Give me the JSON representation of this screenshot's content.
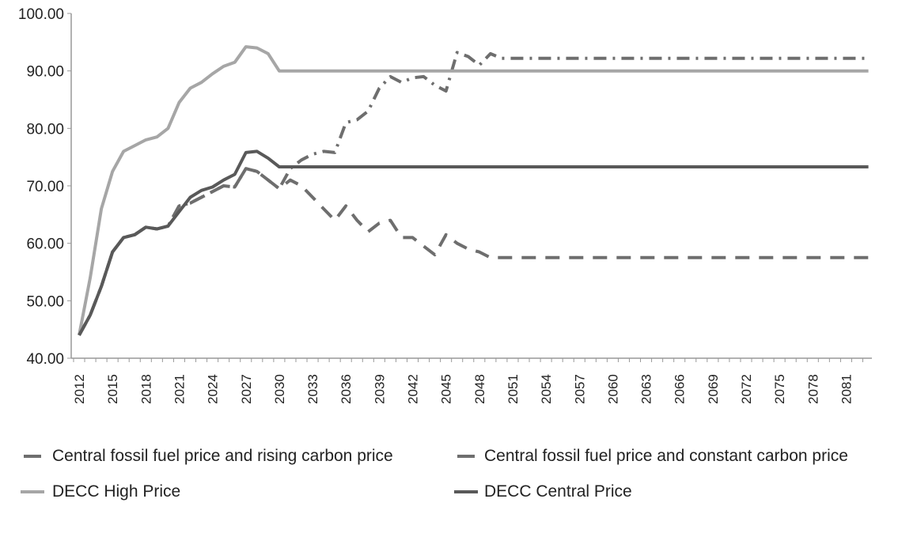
{
  "chart_data": {
    "type": "line",
    "title": "",
    "xlabel": "",
    "ylabel": "",
    "ylim": [
      40,
      100
    ],
    "yticks": [
      "40.00",
      "50.00",
      "60.00",
      "70.00",
      "80.00",
      "90.00",
      "100.00"
    ],
    "xlim": [
      2012,
      2083
    ],
    "xticks": [
      "2012",
      "2015",
      "2018",
      "2021",
      "2024",
      "2027",
      "2030",
      "2033",
      "2036",
      "2039",
      "2042",
      "2045",
      "2048",
      "2051",
      "2054",
      "2057",
      "2060",
      "2063",
      "2066",
      "2069",
      "2072",
      "2075",
      "2078",
      "2081"
    ],
    "grid": false,
    "legend_position": "bottom",
    "series": [
      {
        "name": "Central fossil fuel price and rising carbon price",
        "style": "dash-dot",
        "color": "#6e6e6e",
        "points": [
          [
            2012,
            44
          ],
          [
            2013,
            47.5
          ],
          [
            2014,
            52.5
          ],
          [
            2015,
            58.5
          ],
          [
            2016,
            61
          ],
          [
            2017,
            61.5
          ],
          [
            2018,
            62.8
          ],
          [
            2019,
            62.5
          ],
          [
            2020,
            63
          ],
          [
            2021,
            66.5
          ],
          [
            2022,
            67
          ],
          [
            2023,
            68
          ],
          [
            2024,
            69
          ],
          [
            2025,
            70
          ],
          [
            2026,
            69.8
          ],
          [
            2027,
            73
          ],
          [
            2028,
            72.5
          ],
          [
            2029,
            71
          ],
          [
            2030,
            69.5
          ],
          [
            2031,
            73
          ],
          [
            2032,
            74.5
          ],
          [
            2033,
            75.5
          ],
          [
            2034,
            76
          ],
          [
            2035,
            75.8
          ],
          [
            2036,
            81
          ],
          [
            2037,
            81.5
          ],
          [
            2038,
            83
          ],
          [
            2039,
            87
          ],
          [
            2040,
            89
          ],
          [
            2041,
            88
          ],
          [
            2042,
            88.8
          ],
          [
            2043,
            89
          ],
          [
            2044,
            87.5
          ],
          [
            2045,
            86.5
          ],
          [
            2046,
            93.2
          ],
          [
            2047,
            92.5
          ],
          [
            2048,
            91
          ],
          [
            2049,
            93
          ],
          [
            2050,
            92.2
          ],
          [
            2083,
            92.2
          ]
        ]
      },
      {
        "name": "Central fossil fuel price and constant carbon price",
        "style": "dash",
        "color": "#6e6e6e",
        "points": [
          [
            2012,
            44
          ],
          [
            2013,
            47.5
          ],
          [
            2014,
            52.5
          ],
          [
            2015,
            58.5
          ],
          [
            2016,
            61
          ],
          [
            2017,
            61.5
          ],
          [
            2018,
            62.8
          ],
          [
            2019,
            62.5
          ],
          [
            2020,
            63
          ],
          [
            2021,
            66.5
          ],
          [
            2022,
            67
          ],
          [
            2023,
            68
          ],
          [
            2024,
            69
          ],
          [
            2025,
            70
          ],
          [
            2026,
            69.8
          ],
          [
            2027,
            73
          ],
          [
            2028,
            72.5
          ],
          [
            2029,
            71
          ],
          [
            2030,
            69.5
          ],
          [
            2031,
            71
          ],
          [
            2032,
            70
          ],
          [
            2033,
            68
          ],
          [
            2034,
            66
          ],
          [
            2035,
            64
          ],
          [
            2036,
            66.5
          ],
          [
            2037,
            64
          ],
          [
            2038,
            62
          ],
          [
            2039,
            63.5
          ],
          [
            2040,
            64
          ],
          [
            2041,
            61
          ],
          [
            2042,
            61
          ],
          [
            2043,
            59.5
          ],
          [
            2044,
            58
          ],
          [
            2045,
            61.5
          ],
          [
            2046,
            60
          ],
          [
            2047,
            59
          ],
          [
            2048,
            58.5
          ],
          [
            2049,
            57.5
          ],
          [
            2083,
            57.5
          ]
        ]
      },
      {
        "name": "DECC High Price",
        "style": "solid",
        "color": "#a6a6a6",
        "points": [
          [
            2012,
            44
          ],
          [
            2013,
            54
          ],
          [
            2014,
            66
          ],
          [
            2015,
            72.5
          ],
          [
            2016,
            76
          ],
          [
            2017,
            77
          ],
          [
            2018,
            78
          ],
          [
            2019,
            78.5
          ],
          [
            2020,
            80
          ],
          [
            2021,
            84.5
          ],
          [
            2022,
            87
          ],
          [
            2023,
            88
          ],
          [
            2024,
            89.5
          ],
          [
            2025,
            90.8
          ],
          [
            2026,
            91.5
          ],
          [
            2027,
            94.2
          ],
          [
            2028,
            94
          ],
          [
            2029,
            93
          ],
          [
            2030,
            90
          ],
          [
            2083,
            90
          ]
        ]
      },
      {
        "name": "DECC Central Price",
        "style": "solid",
        "color": "#595959",
        "points": [
          [
            2012,
            44
          ],
          [
            2013,
            47.5
          ],
          [
            2014,
            52.5
          ],
          [
            2015,
            58.5
          ],
          [
            2016,
            61
          ],
          [
            2017,
            61.5
          ],
          [
            2018,
            62.8
          ],
          [
            2019,
            62.5
          ],
          [
            2020,
            63
          ],
          [
            2021,
            65.5
          ],
          [
            2022,
            68
          ],
          [
            2023,
            69.2
          ],
          [
            2024,
            69.8
          ],
          [
            2025,
            71
          ],
          [
            2026,
            72
          ],
          [
            2027,
            75.8
          ],
          [
            2028,
            76
          ],
          [
            2029,
            74.8
          ],
          [
            2030,
            73.3
          ],
          [
            2083,
            73.3
          ]
        ]
      }
    ]
  }
}
